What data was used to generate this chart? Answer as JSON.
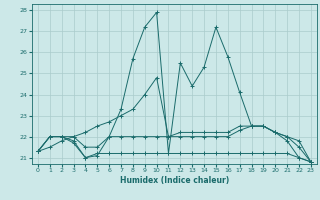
{
  "xlabel": "Humidex (Indice chaleur)",
  "ylabel": "",
  "xlim": [
    -0.5,
    23.5
  ],
  "ylim": [
    20.7,
    28.3
  ],
  "yticks": [
    21,
    22,
    23,
    24,
    25,
    26,
    27,
    28
  ],
  "xticks": [
    0,
    1,
    2,
    3,
    4,
    5,
    6,
    7,
    8,
    9,
    10,
    11,
    12,
    13,
    14,
    15,
    16,
    17,
    18,
    19,
    20,
    21,
    22,
    23
  ],
  "background_color": "#cce8e8",
  "grid_color": "#aacccc",
  "line_color": "#1a6b6b",
  "lines": [
    {
      "x": [
        0,
        1,
        2,
        3,
        4,
        5,
        6,
        7,
        8,
        9,
        10,
        11,
        12,
        13,
        14,
        15,
        16,
        17,
        18,
        19,
        20,
        21,
        22,
        23
      ],
      "y": [
        21.3,
        22.0,
        22.0,
        21.8,
        21.0,
        21.1,
        22.0,
        23.3,
        25.7,
        27.2,
        27.9,
        21.2,
        25.5,
        24.4,
        25.3,
        27.2,
        25.8,
        24.1,
        22.5,
        22.5,
        22.2,
        21.8,
        21.0,
        20.8
      ]
    },
    {
      "x": [
        0,
        1,
        2,
        3,
        4,
        5,
        6,
        7,
        8,
        9,
        10,
        11,
        12,
        13,
        14,
        15,
        16,
        17,
        18,
        19,
        20,
        21,
        22,
        23
      ],
      "y": [
        21.3,
        21.5,
        21.8,
        22.0,
        22.2,
        22.5,
        22.7,
        23.0,
        23.3,
        24.0,
        24.8,
        22.0,
        22.2,
        22.2,
        22.2,
        22.2,
        22.2,
        22.5,
        22.5,
        22.5,
        22.2,
        22.0,
        21.8,
        20.8
      ]
    },
    {
      "x": [
        0,
        1,
        2,
        3,
        4,
        5,
        6,
        7,
        8,
        9,
        10,
        11,
        12,
        13,
        14,
        15,
        16,
        17,
        18,
        19,
        20,
        21,
        22,
        23
      ],
      "y": [
        21.3,
        22.0,
        22.0,
        21.7,
        21.0,
        21.2,
        21.2,
        21.2,
        21.2,
        21.2,
        21.2,
        21.2,
        21.2,
        21.2,
        21.2,
        21.2,
        21.2,
        21.2,
        21.2,
        21.2,
        21.2,
        21.2,
        21.0,
        20.8
      ]
    },
    {
      "x": [
        0,
        1,
        2,
        3,
        4,
        5,
        6,
        7,
        8,
        9,
        10,
        11,
        12,
        13,
        14,
        15,
        16,
        17,
        18,
        19,
        20,
        21,
        22,
        23
      ],
      "y": [
        21.3,
        22.0,
        22.0,
        22.0,
        21.5,
        21.5,
        22.0,
        22.0,
        22.0,
        22.0,
        22.0,
        22.0,
        22.0,
        22.0,
        22.0,
        22.0,
        22.0,
        22.3,
        22.5,
        22.5,
        22.2,
        22.0,
        21.5,
        20.8
      ]
    }
  ]
}
